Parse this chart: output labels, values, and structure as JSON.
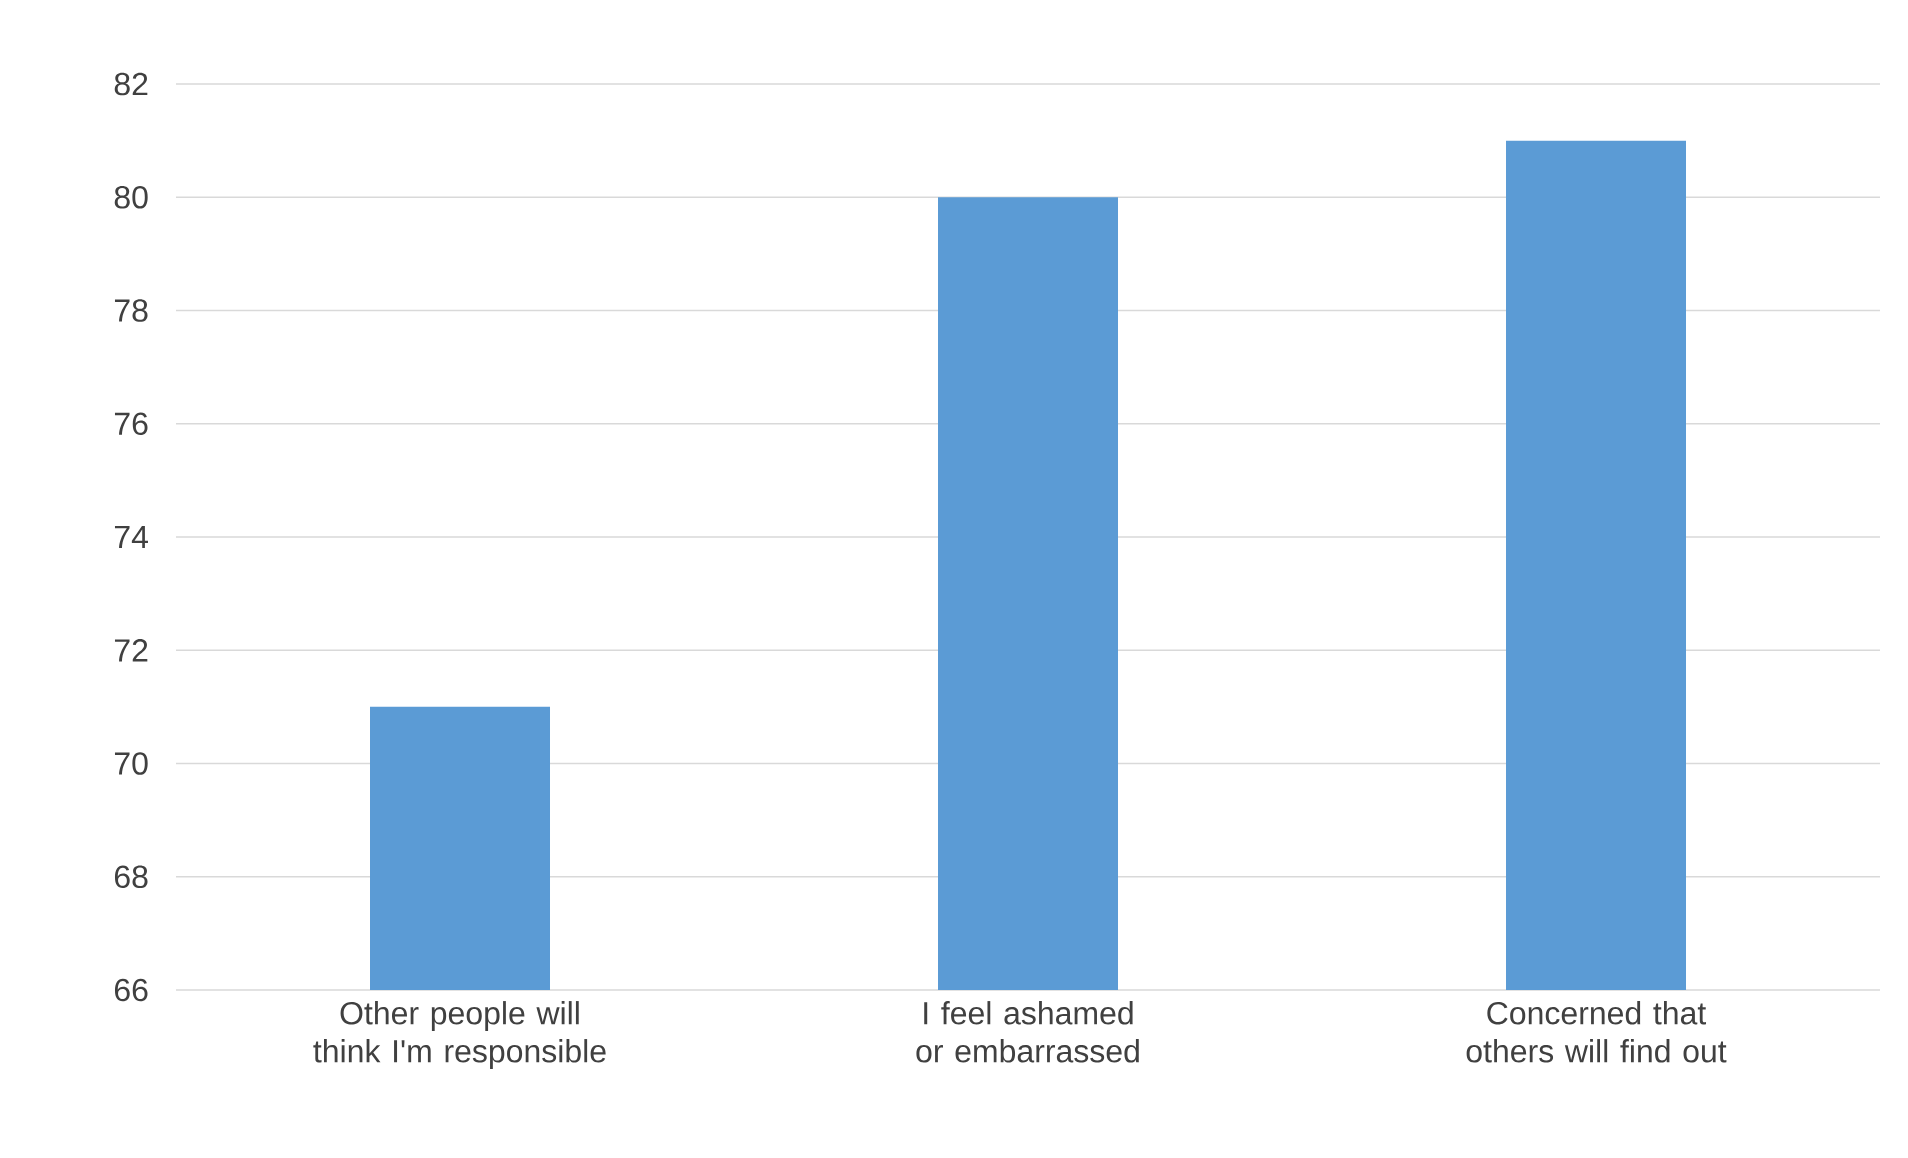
{
  "chart_data": {
    "type": "bar",
    "categories": [
      "Other people will think I'm responsible",
      "I feel ashamed or embarrassed",
      "Concerned that others will find out"
    ],
    "values": [
      71,
      80,
      81
    ],
    "color": "#5b9bd5",
    "ylim": [
      66,
      82
    ],
    "yticks": [
      66,
      68,
      70,
      72,
      74,
      76,
      78,
      80,
      82
    ],
    "grid": "y"
  }
}
